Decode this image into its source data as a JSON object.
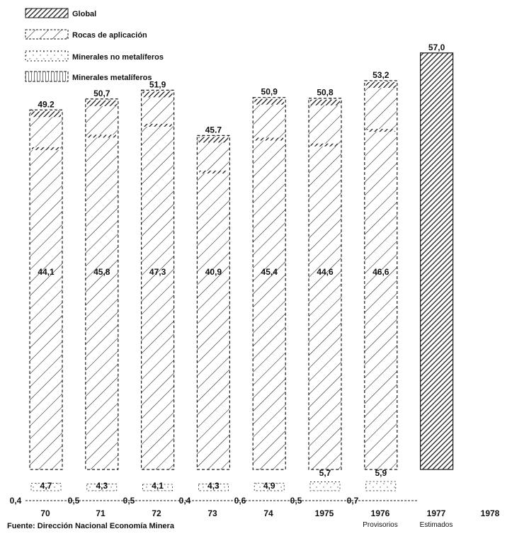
{
  "chart_data": {
    "type": "bar",
    "categories": [
      "70",
      "71",
      "72",
      "73",
      "74",
      "1975",
      "1976",
      "1977"
    ],
    "x_tick_labels": [
      "70",
      "71",
      "72",
      "73",
      "74",
      "1975",
      "1976",
      "1977",
      "1978"
    ],
    "category_notes": [
      "",
      "",
      "",
      "",
      "",
      "",
      "Provisorios",
      "Estimados"
    ],
    "series": [
      {
        "name": "Global",
        "values": [
          49.2,
          50.7,
          51.9,
          45.7,
          50.9,
          50.8,
          53.2,
          57.0
        ]
      },
      {
        "name": "Rocas de aplicación",
        "values": [
          44.1,
          45.8,
          47.3,
          40.9,
          45.4,
          44.6,
          46.6,
          null
        ]
      },
      {
        "name": "Minerales no metalíferos",
        "values": [
          4.7,
          4.3,
          4.1,
          4.3,
          4.9,
          5.7,
          5.9,
          null
        ]
      },
      {
        "name": "Minerales metalíferos",
        "values": [
          0.4,
          0.5,
          0.5,
          0.4,
          0.6,
          0.5,
          0.7,
          null
        ]
      }
    ],
    "value_labels": {
      "global": [
        "49.2",
        "50,7",
        "51,9",
        "45.7",
        "50,9",
        "50,8",
        "53,2",
        "57,0"
      ],
      "rocas": [
        "44,1",
        "45,8",
        "47,3",
        "40,9",
        "45,4",
        "44,6",
        "46,6"
      ],
      "no_metaliferos": [
        "4,7",
        "4,3",
        "4,1",
        "4,3",
        "4,9",
        "5,7",
        "5,9"
      ],
      "metaliferos": [
        "0,4",
        "0,5",
        "0,5",
        "0,4",
        "0,6",
        "0,5",
        "0,7"
      ]
    },
    "legend_position": "top-left",
    "grid": false
  },
  "source_note": "Fuente: Dirección Nacional Economía Minera",
  "colors": {
    "ink": "#1a1a1a",
    "paper": "#ffffff"
  }
}
